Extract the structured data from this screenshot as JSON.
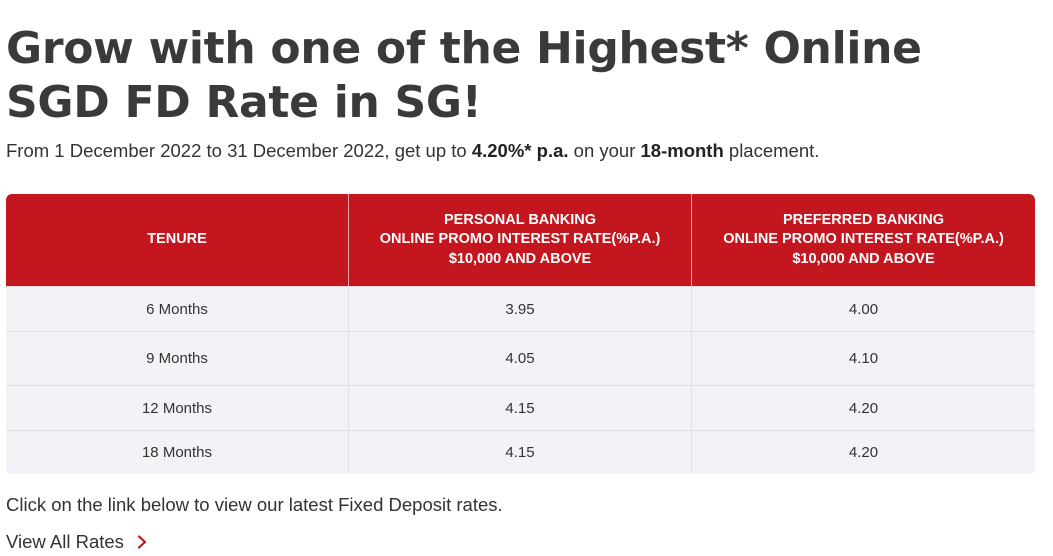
{
  "heading": {
    "title": "Grow with one of the Highest* Online SGD FD Rate in SG!"
  },
  "intro": {
    "part1": "From 1 December 2022 to 31 December 2022, get up to ",
    "rate": "4.20%* p.a.",
    "part2": " on your ",
    "tenure": "18-month",
    "part3": " placement."
  },
  "table": {
    "headers": [
      {
        "lines": [
          "TENURE"
        ]
      },
      {
        "lines": [
          "PERSONAL BANKING",
          "ONLINE PROMO INTEREST RATE(%P.A.)",
          "$10,000 AND ABOVE"
        ]
      },
      {
        "lines": [
          "PREFERRED BANKING",
          "ONLINE PROMO INTEREST RATE(%P.A.)",
          "$10,000 AND ABOVE"
        ]
      }
    ],
    "rows": [
      [
        "6 Months",
        "3.95",
        "4.00"
      ],
      [
        "9 Months",
        "4.05",
        "4.10"
      ],
      [
        "12 Months",
        "4.15",
        "4.20"
      ],
      [
        "18 Months",
        "4.15",
        "4.20"
      ]
    ]
  },
  "footnote": "Click on the link below to view our latest Fixed Deposit rates.",
  "link": {
    "label": "View All Rates",
    "icon": "chevron-right-icon"
  },
  "colors": {
    "header_bg": "#c3161f",
    "row_bg": "#f2f2f7",
    "chevron": "#c3161f"
  }
}
